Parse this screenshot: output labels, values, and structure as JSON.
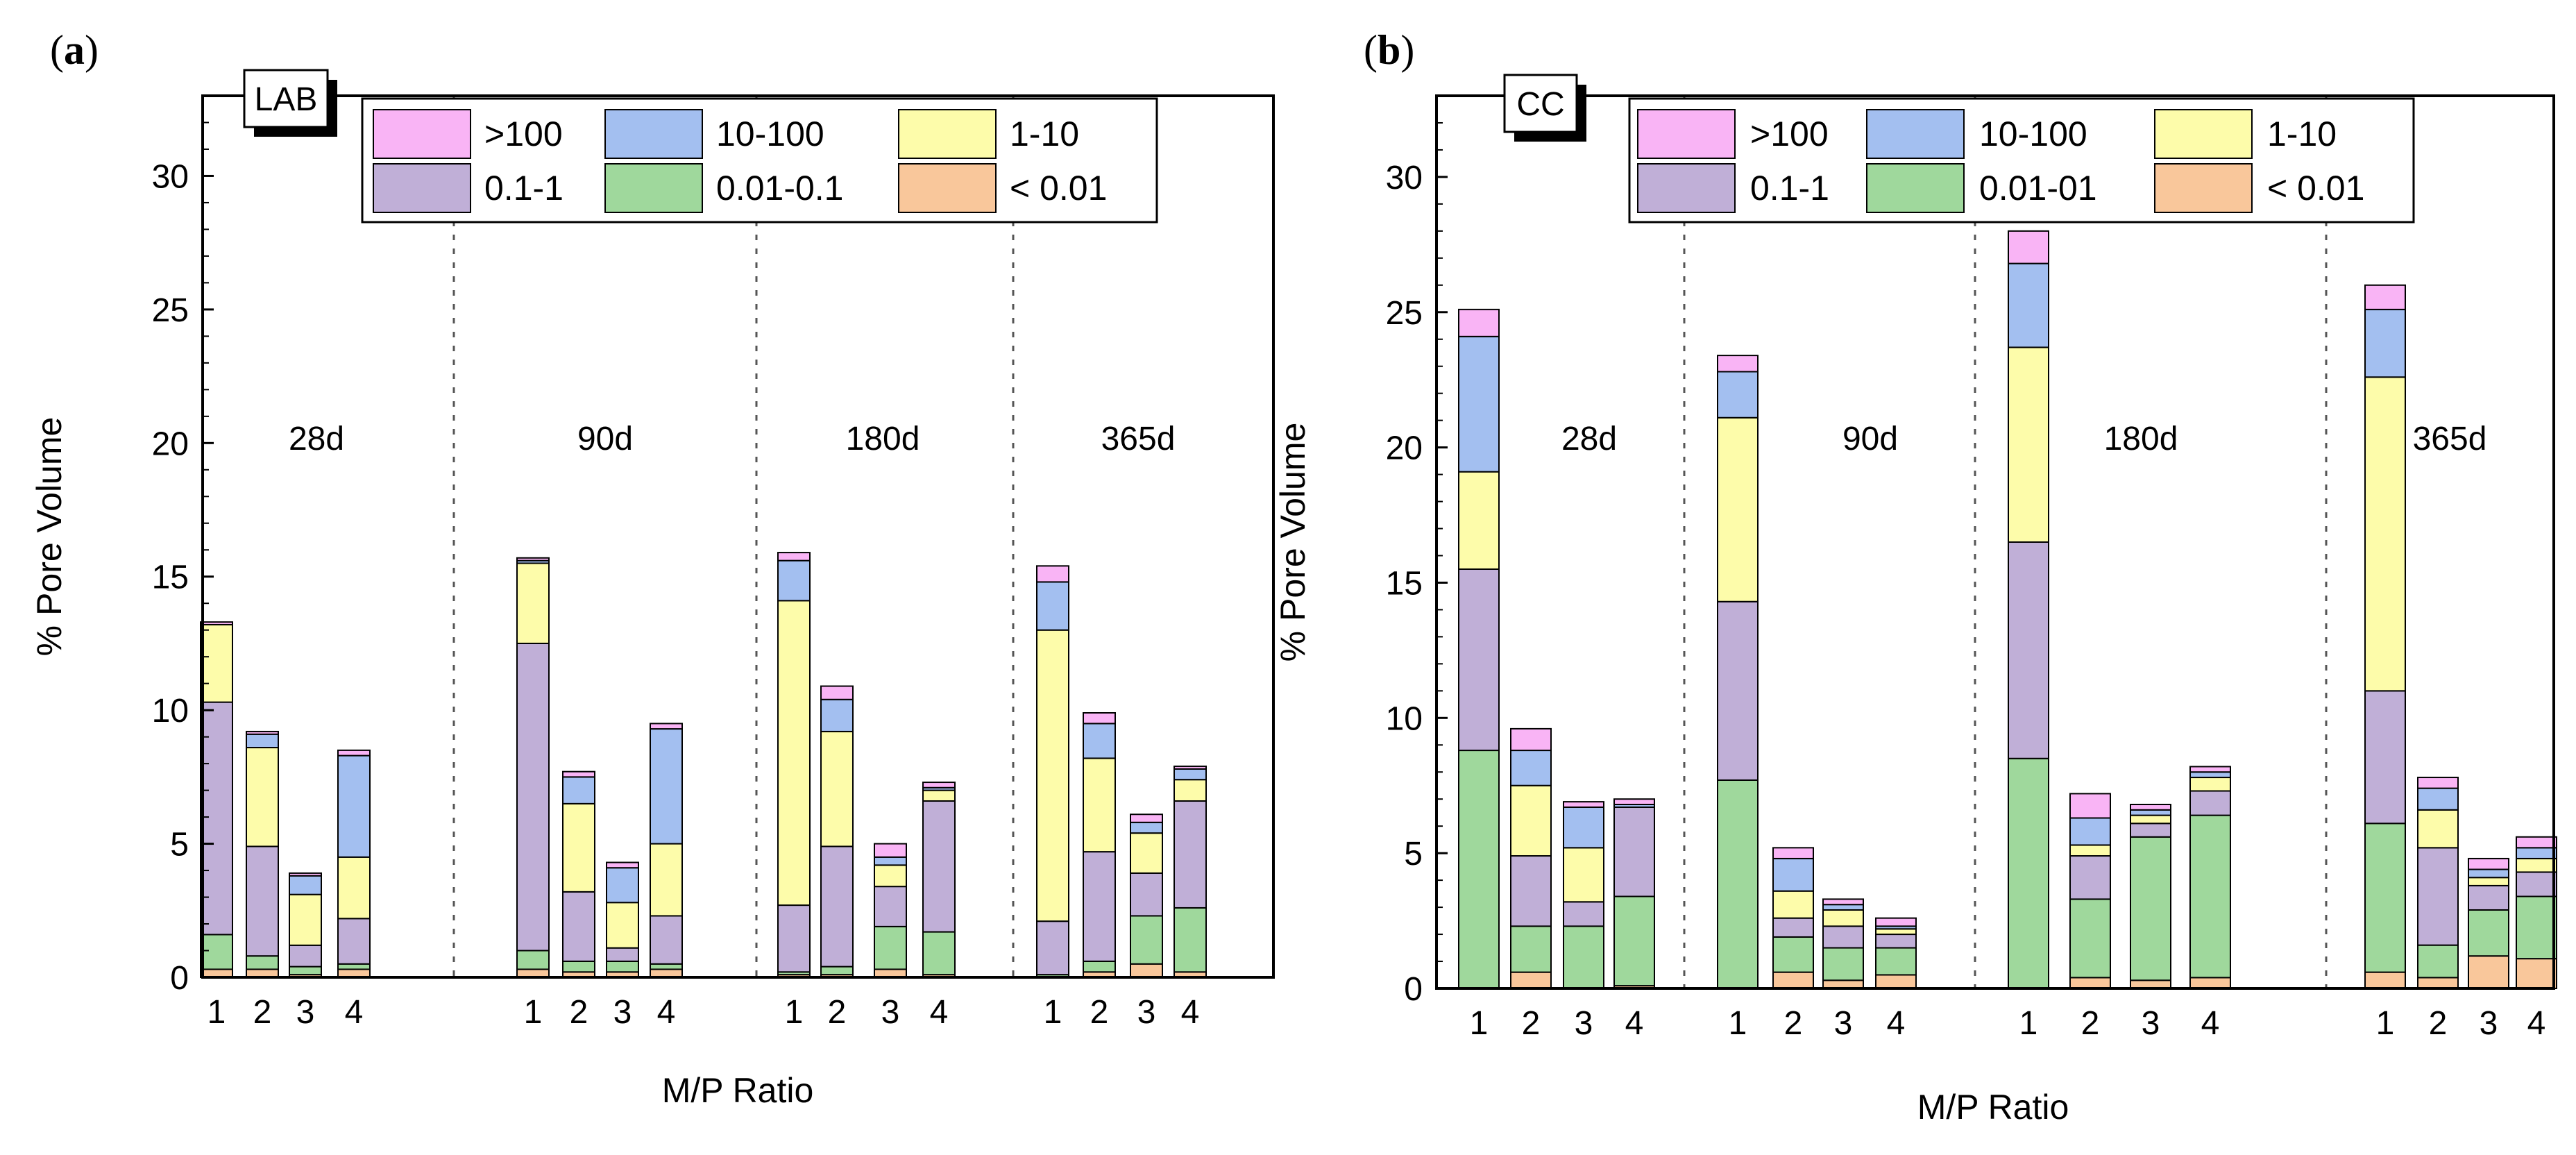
{
  "colors": {
    ">100": "#f9b4f5",
    "10-100": "#a3bff0",
    "1-10": "#fdfcaa",
    "0.1-1": "#c0afd7",
    "0.01-0.1": "#9fd89c",
    "< 0.01": "#f9c79b"
  },
  "chart_data": [
    {
      "type": "bar",
      "stacked": true,
      "panel_label": {
        "open": "(",
        "letter": "a",
        "close": ")"
      },
      "panel_tag": "LAB",
      "ylabel": "% Pore Volume",
      "xlabel": "M/P Ratio",
      "ylim": [
        0,
        33
      ],
      "yticks": [
        "0",
        "5",
        "10",
        "15",
        "20",
        "25",
        "30"
      ],
      "legend": {
        "placement": "top",
        "entries": [
          ">100",
          "10-100",
          "1-10",
          "0.1-1",
          "0.01-0.1",
          "< 0.01"
        ],
        "keys": [
          ">100",
          "10-100",
          "1-10",
          "0.1-1",
          "0.01-0.1",
          "< 0.01"
        ]
      },
      "groups": [
        {
          "name": "28d",
          "categories": [
            "1",
            "2",
            "3",
            "4"
          ],
          "stacks": [
            {
              "< 0.01": 0.3,
              "0.01-0.1": 1.3,
              "0.1-1": 8.7,
              "1-10": 2.9,
              "10-100": 0.0,
              ">100": 0.1
            },
            {
              "< 0.01": 0.3,
              "0.01-0.1": 0.5,
              "0.1-1": 4.1,
              "1-10": 3.7,
              "10-100": 0.5,
              ">100": 0.1
            },
            {
              "< 0.01": 0.1,
              "0.01-0.1": 0.3,
              "0.1-1": 0.8,
              "1-10": 1.9,
              "10-100": 0.7,
              ">100": 0.1
            },
            {
              "< 0.01": 0.3,
              "0.01-0.1": 0.2,
              "0.1-1": 1.7,
              "1-10": 2.3,
              "10-100": 3.8,
              ">100": 0.2
            }
          ]
        },
        {
          "name": "90d",
          "categories": [
            "1",
            "2",
            "3",
            "4"
          ],
          "stacks": [
            {
              "< 0.01": 0.3,
              "0.01-0.1": 0.7,
              "0.1-1": 11.5,
              "1-10": 3.0,
              "10-100": 0.1,
              ">100": 0.1
            },
            {
              "< 0.01": 0.2,
              "0.01-0.1": 0.4,
              "0.1-1": 2.6,
              "1-10": 3.3,
              "10-100": 1.0,
              ">100": 0.2
            },
            {
              "< 0.01": 0.2,
              "0.01-0.1": 0.4,
              "0.1-1": 0.5,
              "1-10": 1.7,
              "10-100": 1.3,
              ">100": 0.2
            },
            {
              "< 0.01": 0.3,
              "0.01-0.1": 0.2,
              "0.1-1": 1.8,
              "1-10": 2.7,
              "10-100": 4.3,
              ">100": 0.2
            }
          ]
        },
        {
          "name": "180d",
          "categories": [
            "1",
            "2",
            "3",
            "4"
          ],
          "stacks": [
            {
              "< 0.01": 0.1,
              "0.01-0.1": 0.1,
              "0.1-1": 2.5,
              "1-10": 11.4,
              "10-100": 1.5,
              ">100": 0.3
            },
            {
              "< 0.01": 0.1,
              "0.01-0.1": 0.3,
              "0.1-1": 4.5,
              "1-10": 4.3,
              "10-100": 1.2,
              ">100": 0.5
            },
            {
              "< 0.01": 0.3,
              "0.01-0.1": 1.6,
              "0.1-1": 1.5,
              "1-10": 0.8,
              "10-100": 0.3,
              ">100": 0.5
            },
            {
              "< 0.01": 0.1,
              "0.01-0.1": 1.6,
              "0.1-1": 4.9,
              "1-10": 0.4,
              "10-100": 0.1,
              ">100": 0.2
            }
          ]
        },
        {
          "name": "365d",
          "categories": [
            "1",
            "2",
            "3",
            "4"
          ],
          "stacks": [
            {
              "< 0.01": 0.0,
              "0.01-0.1": 0.1,
              "0.1-1": 2.0,
              "1-10": 10.9,
              "10-100": 1.8,
              ">100": 0.6
            },
            {
              "< 0.01": 0.2,
              "0.01-0.1": 0.4,
              "0.1-1": 4.1,
              "1-10": 3.5,
              "10-100": 1.3,
              ">100": 0.4
            },
            {
              "< 0.01": 0.5,
              "0.01-0.1": 1.8,
              "0.1-1": 1.6,
              "1-10": 1.5,
              "10-100": 0.4,
              ">100": 0.3
            },
            {
              "< 0.01": 0.2,
              "0.01-0.1": 2.4,
              "0.1-1": 4.0,
              "1-10": 0.8,
              "10-100": 0.4,
              ">100": 0.1
            }
          ]
        }
      ]
    },
    {
      "type": "bar",
      "stacked": true,
      "panel_label": {
        "open": "(",
        "letter": "b",
        "close": ")"
      },
      "panel_tag": "CC",
      "ylabel": "% Pore Volume",
      "xlabel": "M/P Ratio",
      "ylim": [
        0,
        33
      ],
      "yticks": [
        "0",
        "5",
        "10",
        "15",
        "20",
        "25",
        "30"
      ],
      "legend": {
        "placement": "top",
        "entries": [
          ">100",
          "10-100",
          "1-10",
          "0.1-1",
          "0.01-01",
          "< 0.01"
        ],
        "keys": [
          ">100",
          "10-100",
          "1-10",
          "0.1-1",
          "0.01-0.1",
          "< 0.01"
        ]
      },
      "groups": [
        {
          "name": "28d",
          "categories": [
            "1",
            "2",
            "3",
            "4"
          ],
          "stacks": [
            {
              "< 0.01": 0.0,
              "0.01-0.1": 8.8,
              "0.1-1": 6.7,
              "1-10": 3.6,
              "10-100": 5.0,
              ">100": 1.0
            },
            {
              "< 0.01": 0.6,
              "0.01-0.1": 1.7,
              "0.1-1": 2.6,
              "1-10": 2.6,
              "10-100": 1.3,
              ">100": 0.8
            },
            {
              "< 0.01": 0.0,
              "0.01-0.1": 2.3,
              "0.1-1": 0.9,
              "1-10": 2.0,
              "10-100": 1.5,
              ">100": 0.2
            },
            {
              "< 0.01": 0.1,
              "0.01-0.1": 3.3,
              "0.1-1": 3.3,
              "1-10": 0.0,
              "10-100": 0.1,
              ">100": 0.2
            }
          ]
        },
        {
          "name": "90d",
          "categories": [
            "1",
            "2",
            "3",
            "4"
          ],
          "stacks": [
            {
              "< 0.01": 0.0,
              "0.01-0.1": 7.7,
              "0.1-1": 6.6,
              "1-10": 6.8,
              "10-100": 1.7,
              ">100": 0.6
            },
            {
              "< 0.01": 0.6,
              "0.01-0.1": 1.3,
              "0.1-1": 0.7,
              "1-10": 1.0,
              "10-100": 1.2,
              ">100": 0.4
            },
            {
              "< 0.01": 0.3,
              "0.01-0.1": 1.2,
              "0.1-1": 0.8,
              "1-10": 0.6,
              "10-100": 0.2,
              ">100": 0.2
            },
            {
              "< 0.01": 0.5,
              "0.01-0.1": 1.0,
              "0.1-1": 0.5,
              "1-10": 0.2,
              "10-100": 0.1,
              ">100": 0.3
            }
          ]
        },
        {
          "name": "180d",
          "categories": [
            "1",
            "2",
            "3",
            "4"
          ],
          "stacks": [
            {
              "< 0.01": 0.0,
              "0.01-0.1": 8.5,
              "0.1-1": 8.0,
              "1-10": 7.2,
              "10-100": 3.1,
              ">100": 1.2
            },
            {
              "< 0.01": 0.4,
              "0.01-0.1": 2.9,
              "0.1-1": 1.6,
              "1-10": 0.4,
              "10-100": 1.0,
              ">100": 0.9
            },
            {
              "< 0.01": 0.3,
              "0.01-0.1": 5.3,
              "0.1-1": 0.5,
              "1-10": 0.3,
              "10-100": 0.2,
              ">100": 0.2
            },
            {
              "< 0.01": 0.4,
              "0.01-0.1": 6.0,
              "0.1-1": 0.9,
              "1-10": 0.5,
              "10-100": 0.2,
              ">100": 0.2
            }
          ]
        },
        {
          "name": "365d",
          "categories": [
            "1",
            "2",
            "3",
            "4"
          ],
          "stacks": [
            {
              "< 0.01": 0.6,
              "0.01-0.1": 5.5,
              "0.1-1": 4.9,
              "1-10": 11.6,
              "10-100": 2.5,
              ">100": 0.9
            },
            {
              "< 0.01": 0.4,
              "0.01-0.1": 1.2,
              "0.1-1": 3.6,
              "1-10": 1.4,
              "10-100": 0.8,
              ">100": 0.4
            },
            {
              "< 0.01": 1.2,
              "0.01-0.1": 1.7,
              "0.1-1": 0.9,
              "1-10": 0.3,
              "10-100": 0.3,
              ">100": 0.4
            },
            {
              "< 0.01": 1.1,
              "0.01-0.1": 2.3,
              "0.1-1": 0.9,
              "1-10": 0.5,
              "10-100": 0.4,
              ">100": 0.4
            }
          ]
        }
      ]
    }
  ]
}
